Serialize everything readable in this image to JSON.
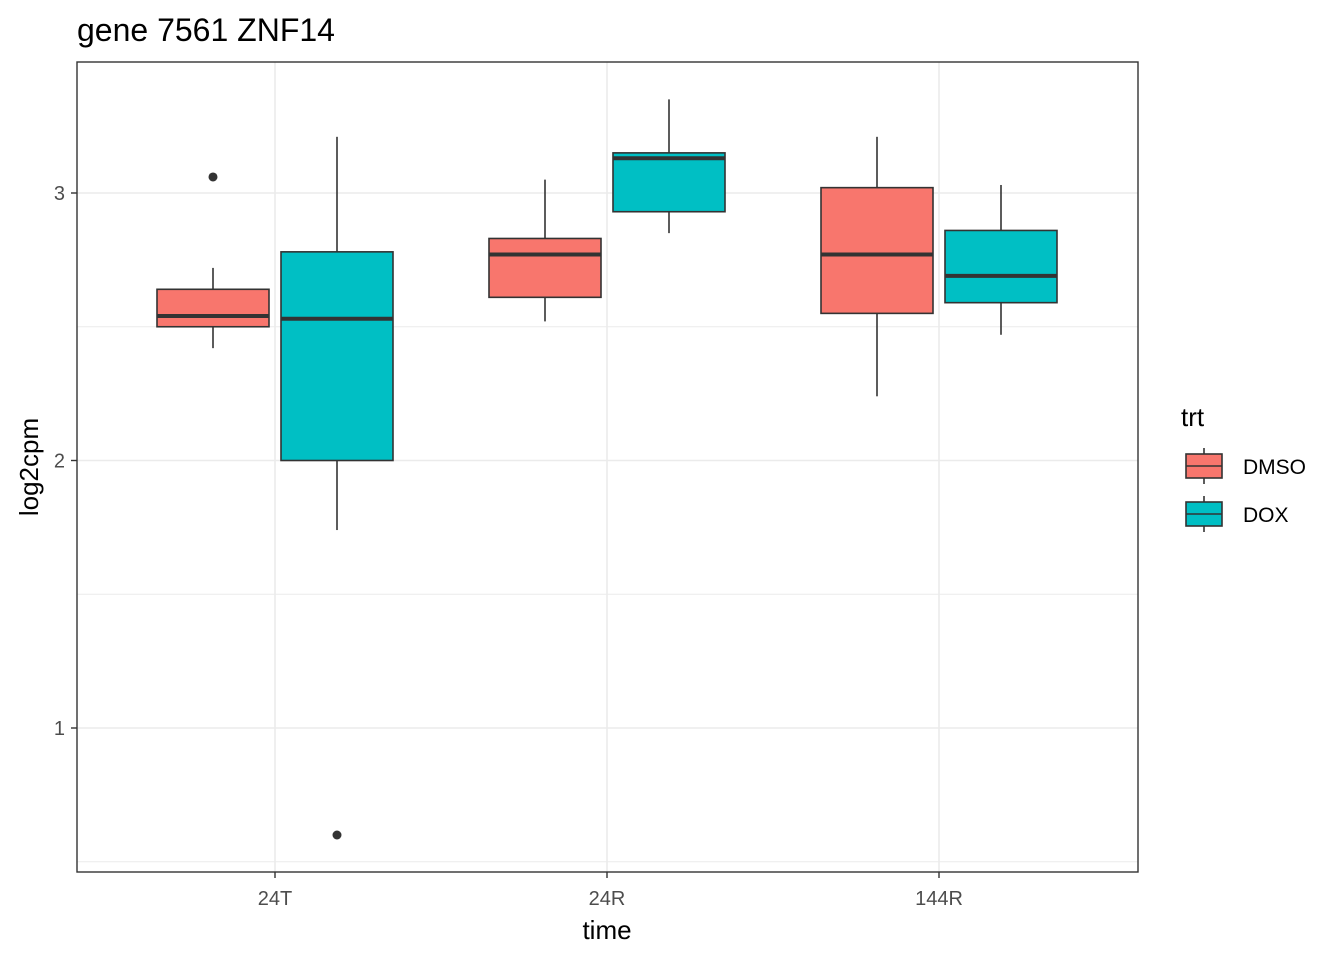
{
  "chart_data": {
    "type": "box",
    "title": "gene 7561 ZNF14",
    "xlabel": "time",
    "ylabel": "log2cpm",
    "categories": [
      "24T",
      "24R",
      "144R"
    ],
    "ylim": [
      0.5,
      3.5
    ],
    "yticks": [
      1,
      2,
      3
    ],
    "grid": true,
    "legend": {
      "title": "trt",
      "position": "right",
      "entries": [
        "DMSO",
        "DOX"
      ]
    },
    "series": [
      {
        "name": "DMSO",
        "color": "#F8766D",
        "boxes": [
          {
            "category": "24T",
            "whisker_low": 2.42,
            "q1": 2.5,
            "median": 2.54,
            "q3": 2.64,
            "whisker_high": 2.72,
            "outliers": [
              3.06
            ]
          },
          {
            "category": "24R",
            "whisker_low": 2.52,
            "q1": 2.61,
            "median": 2.77,
            "q3": 2.83,
            "whisker_high": 3.05,
            "outliers": []
          },
          {
            "category": "144R",
            "whisker_low": 2.24,
            "q1": 2.55,
            "median": 2.77,
            "q3": 3.02,
            "whisker_high": 3.21,
            "outliers": []
          }
        ]
      },
      {
        "name": "DOX",
        "color": "#00BFC4",
        "boxes": [
          {
            "category": "24T",
            "whisker_low": 1.74,
            "q1": 2.0,
            "median": 2.53,
            "q3": 2.78,
            "whisker_high": 3.21,
            "outliers": [
              0.6
            ]
          },
          {
            "category": "24R",
            "whisker_low": 2.85,
            "q1": 2.93,
            "median": 3.13,
            "q3": 3.15,
            "whisker_high": 3.35,
            "outliers": []
          },
          {
            "category": "144R",
            "whisker_low": 2.47,
            "q1": 2.59,
            "median": 2.69,
            "q3": 2.86,
            "whisker_high": 3.03,
            "outliers": []
          }
        ]
      }
    ]
  }
}
